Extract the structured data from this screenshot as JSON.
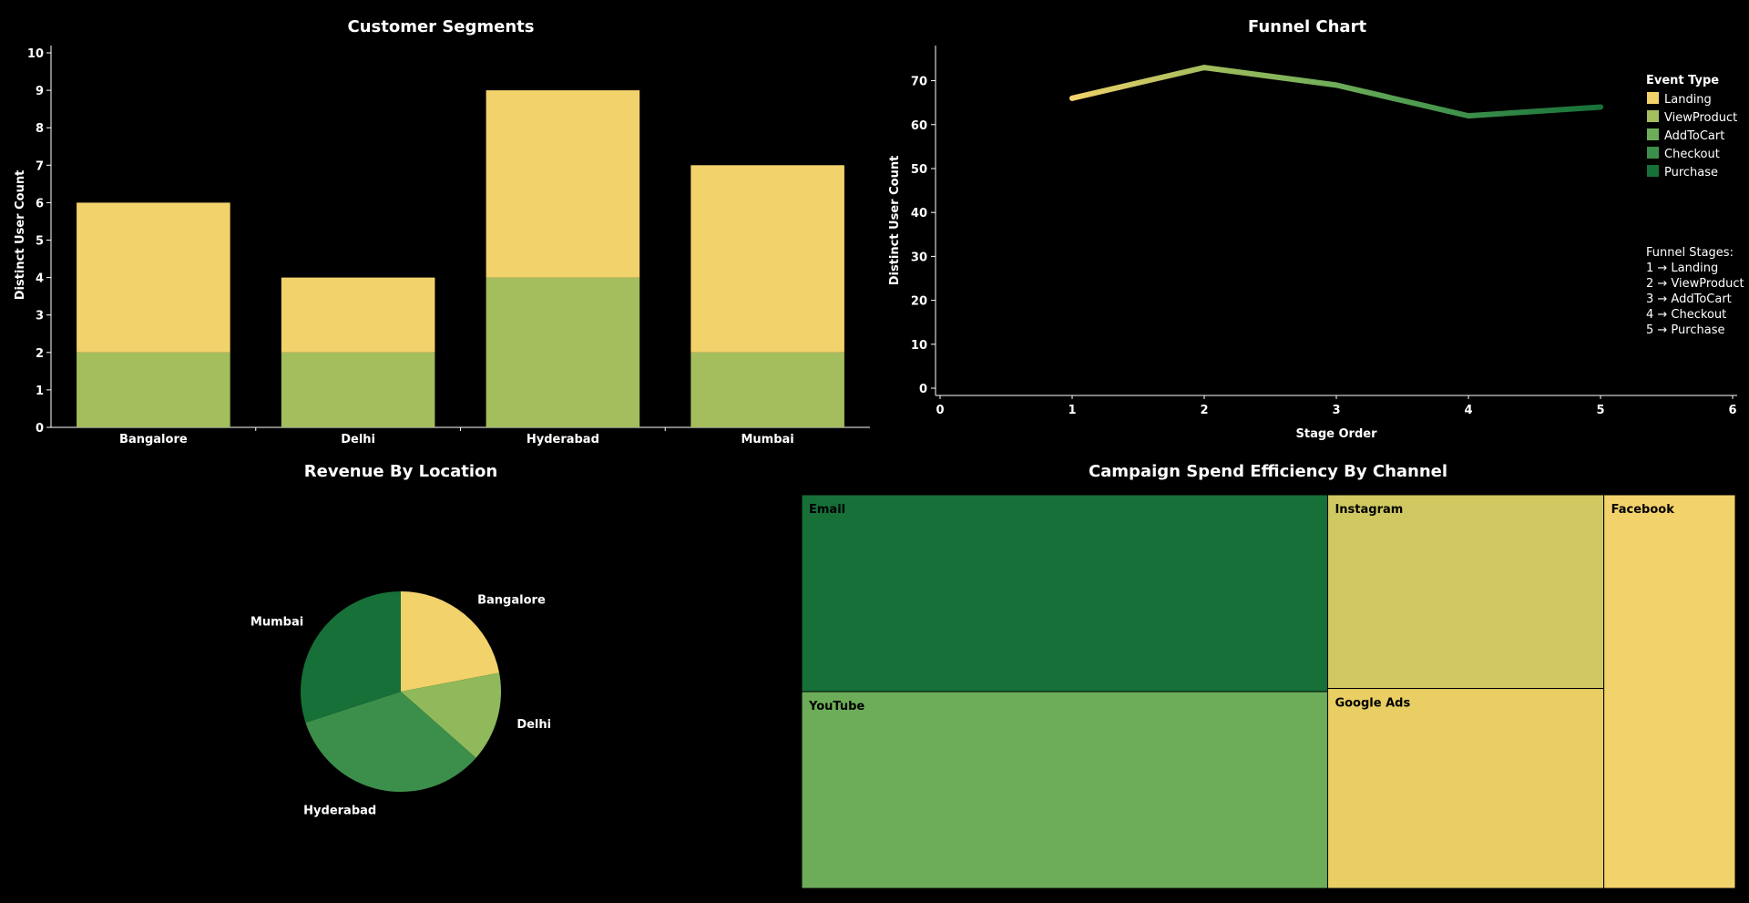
{
  "chart_data": [
    {
      "type": "bar",
      "title": "Customer Segments",
      "ylabel": "Distinct User Count",
      "xlabel": "",
      "categories": [
        "Bangalore",
        "Delhi",
        "Hyderabad",
        "Mumbai"
      ],
      "stacked": true,
      "series": [
        {
          "values": [
            2,
            2,
            4,
            2
          ],
          "color": "#a4bd5d"
        },
        {
          "values": [
            4,
            2,
            5,
            5
          ],
          "color": "#f2d26b"
        }
      ],
      "ylim": [
        0,
        10
      ],
      "yticks": [
        "0",
        "1",
        "2",
        "3",
        "4",
        "5",
        "6",
        "7",
        "8",
        "9",
        "10"
      ]
    },
    {
      "type": "line",
      "title": "Funnel Chart",
      "xlabel": "Stage Order",
      "ylabel": "Distinct User Count",
      "x": [
        1,
        2,
        3,
        4,
        5
      ],
      "y": [
        66,
        73,
        69,
        62,
        64
      ],
      "xlim": [
        0,
        6
      ],
      "ylim": [
        0,
        78
      ],
      "xticks": [
        "0",
        "1",
        "2",
        "3",
        "4",
        "5",
        "6"
      ],
      "yticks": [
        "0",
        "10",
        "20",
        "30",
        "40",
        "50",
        "60",
        "70"
      ],
      "legend_title": "Event Type",
      "legend": [
        {
          "name": "Landing",
          "color": "#f2d26b"
        },
        {
          "name": "ViewProduct",
          "color": "#a4bd5d"
        },
        {
          "name": "AddToCart",
          "color": "#6dad59"
        },
        {
          "name": "Checkout",
          "color": "#3c8f4a"
        },
        {
          "name": "Purchase",
          "color": "#167038"
        }
      ],
      "legend_position": "right",
      "notes_title": "Funnel Stages:",
      "notes": [
        "1 → Landing",
        "2 → ViewProduct",
        "3 → AddToCart",
        "4 → Checkout",
        "5 → Purchase"
      ]
    },
    {
      "type": "pie",
      "title": "Revenue By Location",
      "slices": [
        {
          "label": "Bangalore",
          "value": 22,
          "color": "#f2d26b"
        },
        {
          "label": "Delhi",
          "value": 14.5,
          "color": "#8fb95a"
        },
        {
          "label": "Hyderabad",
          "value": 33.5,
          "color": "#3c8f4a"
        },
        {
          "label": "Mumbai",
          "value": 30,
          "color": "#167038"
        }
      ]
    },
    {
      "type": "treemap",
      "title": "Campaign Spend Efficiency By Channel",
      "items": [
        {
          "label": "Email",
          "value": 30,
          "color": "#167038"
        },
        {
          "label": "YouTube",
          "value": 30,
          "color": "#6dad59"
        },
        {
          "label": "Instagram",
          "value": 15.5,
          "color": "#d0c962"
        },
        {
          "label": "Google Ads",
          "value": 16,
          "color": "#e8ce63"
        },
        {
          "label": "Facebook",
          "value": 15,
          "color": "#f2d26b"
        }
      ]
    }
  ]
}
